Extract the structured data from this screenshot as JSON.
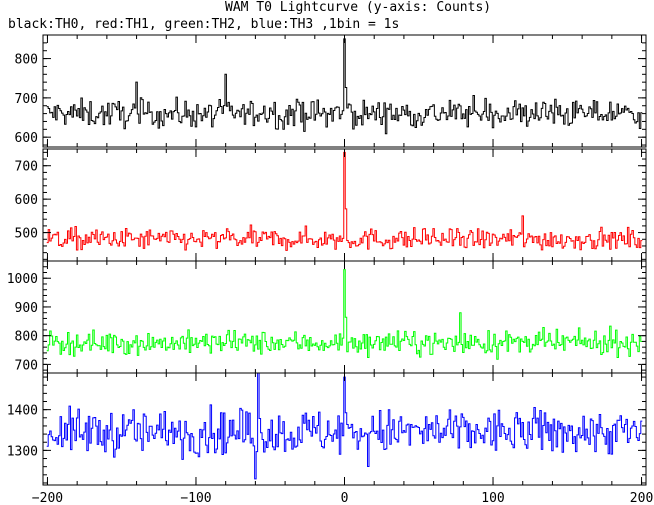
{
  "chart_data": {
    "type": "line",
    "title": "WAM T0 Lightcurve (y-axis: Counts)",
    "subtitle": "black:TH0, red:TH1, green:TH2, blue:TH3 ,1bin = 1s",
    "xlim": [
      -203,
      203
    ],
    "x_ticks": [
      -200,
      -100,
      0,
      100,
      200
    ],
    "grid": false,
    "panels": [
      {
        "color": "#000000",
        "ylim": [
          575,
          860
        ],
        "y_ticks": [
          600,
          700,
          800
        ],
        "baseline": 660,
        "noise": 22,
        "peaks": [
          {
            "x": 0,
            "value": 850
          },
          {
            "x": -80,
            "value": 760
          },
          {
            "x": -140,
            "value": 740
          }
        ]
      },
      {
        "color": "#ff0000",
        "ylim": [
          415,
          750
        ],
        "y_ticks": [
          500,
          600,
          700
        ],
        "baseline": 480,
        "noise": 20,
        "peaks": [
          {
            "x": 0,
            "value": 740
          },
          {
            "x": 120,
            "value": 550
          }
        ]
      },
      {
        "color": "#00ff00",
        "ylim": [
          670,
          1060
        ],
        "y_ticks": [
          700,
          800,
          900,
          1000
        ],
        "baseline": 775,
        "noise": 25,
        "peaks": [
          {
            "x": 0,
            "value": 1030
          },
          {
            "x": 78,
            "value": 880
          }
        ]
      },
      {
        "color": "#0000ff",
        "ylim": [
          1215,
          1490
        ],
        "y_ticks": [
          1300,
          1400
        ],
        "baseline": 1345,
        "noise": 35,
        "peaks": [
          {
            "x": 0,
            "value": 1480
          },
          {
            "x": -58,
            "value": 1490
          },
          {
            "x": -60,
            "value": 1230
          }
        ]
      }
    ]
  }
}
